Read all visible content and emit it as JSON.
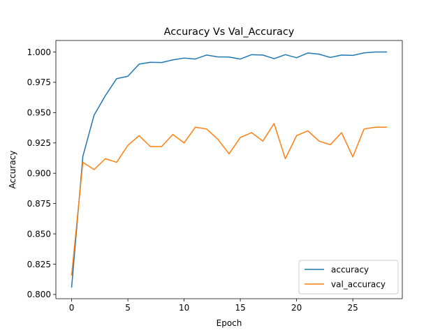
{
  "chart_data": {
    "type": "line",
    "title": "Accuracy Vs Val_Accuracy",
    "xlabel": "Epoch",
    "ylabel": "Accuracy",
    "xlim": [
      -1.4,
      29.4
    ],
    "ylim": [
      0.7965,
      1.0095
    ],
    "xticks": [
      0,
      5,
      10,
      15,
      20,
      25
    ],
    "yticks": [
      0.8,
      0.825,
      0.85,
      0.875,
      0.9,
      0.925,
      0.95,
      0.975,
      1.0
    ],
    "ytick_labels": [
      "0.800",
      "0.825",
      "0.850",
      "0.875",
      "0.900",
      "0.925",
      "0.950",
      "0.975",
      "1.000"
    ],
    "grid": false,
    "legend_position": "lower-right",
    "x": [
      0,
      1,
      2,
      3,
      4,
      5,
      6,
      7,
      8,
      9,
      10,
      11,
      12,
      13,
      14,
      15,
      16,
      17,
      18,
      19,
      20,
      21,
      22,
      23,
      24,
      25,
      26,
      27,
      28
    ],
    "series": [
      {
        "name": "accuracy",
        "color": "#1f77b4",
        "values": [
          0.806,
          0.914,
          0.948,
          0.964,
          0.978,
          0.98,
          0.99,
          0.9915,
          0.9913,
          0.9935,
          0.995,
          0.9942,
          0.9975,
          0.996,
          0.9958,
          0.9942,
          0.9978,
          0.9975,
          0.9945,
          0.9978,
          0.9953,
          0.9992,
          0.9982,
          0.9955,
          0.9975,
          0.9972,
          0.9993,
          1.0,
          1.0
        ]
      },
      {
        "name": "val_accuracy",
        "color": "#ff7f0e",
        "values": [
          0.816,
          0.909,
          0.903,
          0.912,
          0.909,
          0.923,
          0.931,
          0.922,
          0.922,
          0.932,
          0.925,
          0.938,
          0.9365,
          0.928,
          0.916,
          0.9295,
          0.9335,
          0.9265,
          0.941,
          0.912,
          0.931,
          0.935,
          0.9265,
          0.9235,
          0.9335,
          0.9135,
          0.9365,
          0.938,
          0.938
        ]
      }
    ]
  }
}
